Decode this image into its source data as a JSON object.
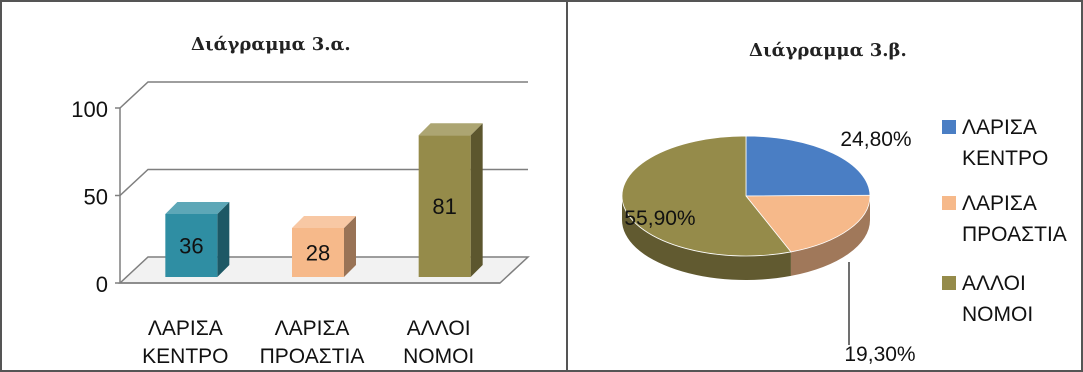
{
  "chart_data": [
    {
      "type": "bar",
      "title": "Διάγραμμα 3.α.",
      "categories": [
        [
          "ΛΑΡΙΣΑ",
          "ΚΕΝΤΡΟ"
        ],
        [
          "ΛΑΡΙΣΑ",
          "ΠΡΟΑΣΤΙΑ"
        ],
        [
          "ΑΛΛΟΙ",
          "ΝΟΜΟΙ"
        ]
      ],
      "values": [
        36,
        28,
        81
      ],
      "data_labels": [
        "36",
        "28",
        "81"
      ],
      "y_ticks": [
        "0",
        "50",
        "100"
      ],
      "ylim": [
        0,
        100
      ],
      "xlabel": "",
      "ylabel": "",
      "three_d": true,
      "grid": true,
      "bar_colors": [
        "#2f8ea3",
        "#f6b98a",
        "#958b4a"
      ]
    },
    {
      "type": "pie",
      "title": "Διάγραμμα 3.β.",
      "labels": [
        [
          "ΛΑΡΙΣΑ",
          "ΚΕΝΤΡΟ"
        ],
        [
          "ΛΑΡΙΣΑ",
          "ΠΡΟΑΣΤΙΑ"
        ],
        [
          "ΑΛΛΟΙ",
          "ΝΟΜΟΙ"
        ]
      ],
      "values": [
        24.8,
        19.3,
        55.9
      ],
      "data_labels": [
        "24,80%",
        "19,30%",
        "55,90%"
      ],
      "colors": [
        "#4a7ec4",
        "#f6b98a",
        "#958b4a"
      ],
      "legend_position": "right",
      "three_d": true
    }
  ]
}
